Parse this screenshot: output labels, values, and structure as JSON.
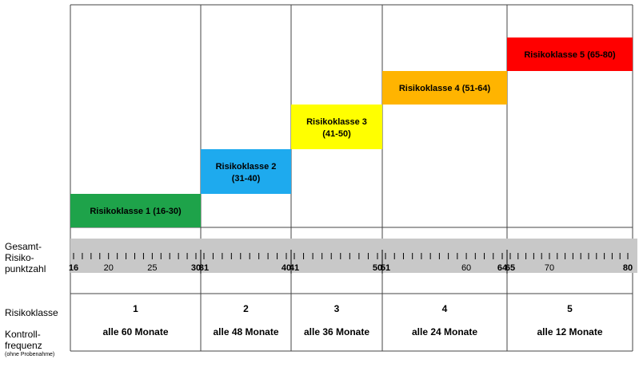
{
  "labels": {
    "score_line1": "Gesamt-",
    "score_line2": "Risiko-",
    "score_line3": "punktzahl",
    "risk_class": "Risikoklasse",
    "frequency_line1": "Kontroll-",
    "frequency_line2": "frequenz",
    "frequency_note": "(ohne Probenahme)"
  },
  "classes": [
    {
      "number": "1",
      "label_line1": "Risikoklasse 1 (16-30)",
      "label_line2": "",
      "frequency": "alle 60 Monate",
      "color": "#1ea34a",
      "min": 16,
      "max": 30
    },
    {
      "number": "2",
      "label_line1": "Risikoklasse 2",
      "label_line2": "(31-40)",
      "frequency": "alle 48 Monate",
      "color": "#1eaaee",
      "min": 31,
      "max": 40
    },
    {
      "number": "3",
      "label_line1": "Risikoklasse 3",
      "label_line2": "(41-50)",
      "frequency": "alle 36 Monate",
      "color": "#ffff00",
      "min": 41,
      "max": 50
    },
    {
      "number": "4",
      "label_line1": "Risikoklasse 4 (51-64)",
      "label_line2": "",
      "frequency": "alle 24 Monate",
      "color": "#ffb400",
      "min": 51,
      "max": 64
    },
    {
      "number": "5",
      "label_line1": "Risikoklasse 5 (65-80)",
      "label_line2": "",
      "frequency": "alle 12 Monate",
      "color": "#ff0000",
      "min": 65,
      "max": 80
    }
  ],
  "scale": {
    "min": 16,
    "max": 80,
    "tick_labels": [
      {
        "value": 16,
        "text": "16",
        "bold": true
      },
      {
        "value": 20,
        "text": "20",
        "bold": false
      },
      {
        "value": 25,
        "text": "25",
        "bold": false
      },
      {
        "value": 30,
        "text": "30",
        "bold": true
      },
      {
        "value": 31,
        "text": "31",
        "bold": true
      },
      {
        "value": 40,
        "text": "40",
        "bold": true
      },
      {
        "value": 41,
        "text": "41",
        "bold": true
      },
      {
        "value": 50,
        "text": "50",
        "bold": true
      },
      {
        "value": 51,
        "text": "51",
        "bold": true
      },
      {
        "value": 60,
        "text": "60",
        "bold": false
      },
      {
        "value": 64,
        "text": "64",
        "bold": true
      },
      {
        "value": 65,
        "text": "65",
        "bold": true
      },
      {
        "value": 70,
        "text": "70",
        "bold": false
      },
      {
        "value": 80,
        "text": "80",
        "bold": true
      }
    ],
    "bar_color": "#c8c8c8"
  }
}
